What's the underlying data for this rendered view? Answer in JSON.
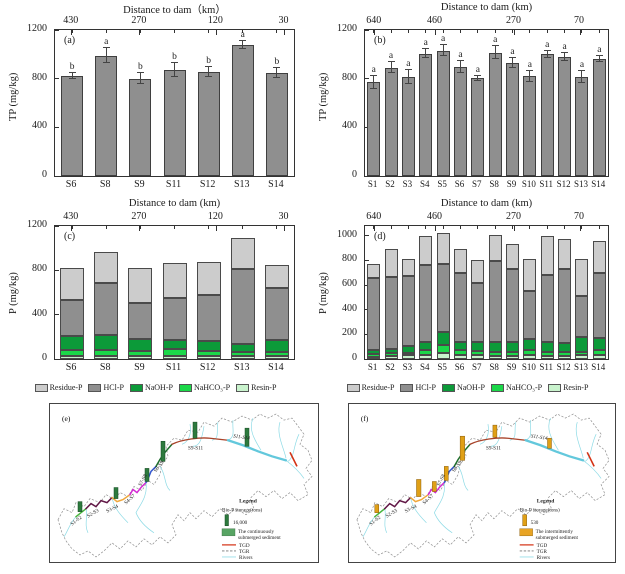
{
  "colors": {
    "bar_fill": "#8f8f8f",
    "bar_border": "#3f3f3f",
    "error": "#444444"
  },
  "chart_data": [
    {
      "id": "a",
      "type": "bar",
      "panel_label": "(a)",
      "ylabel": "TP (mg/kg)",
      "ymax": 1200,
      "frame_max": 1200,
      "yticks": [
        0,
        400,
        800,
        1200
      ],
      "top_axis": {
        "title": "Distance to dam（km）",
        "labels": [
          {
            "text": "430",
            "pos": 0.07
          },
          {
            "text": "270",
            "pos": 0.355
          },
          {
            "text": "120",
            "pos": 0.675
          },
          {
            "text": "30",
            "pos": 0.96
          }
        ]
      },
      "categories": [
        "S6",
        "S8",
        "S9",
        "S11",
        "S12",
        "S13",
        "S14"
      ],
      "values": [
        820,
        990,
        800,
        870,
        855,
        1075,
        845
      ],
      "errors": [
        25,
        65,
        45,
        55,
        40,
        35,
        40
      ],
      "letters": [
        "b",
        "a",
        "b",
        "b",
        "b",
        "a",
        "b"
      ]
    },
    {
      "id": "b",
      "type": "bar",
      "panel_label": "(b)",
      "ylabel": "TP (mg/kg)",
      "ymax": 1200,
      "frame_max": 1200,
      "yticks": [
        0,
        400,
        800,
        1200
      ],
      "top_axis": {
        "title": "Distance to dam (km)",
        "labels": [
          {
            "text": "640",
            "pos": 0.04
          },
          {
            "text": "460",
            "pos": 0.29
          },
          {
            "text": "270",
            "pos": 0.615
          },
          {
            "text": "70",
            "pos": 0.885
          }
        ]
      },
      "categories": [
        "S1",
        "S2",
        "S3",
        "S4",
        "S5",
        "S6",
        "S7",
        "S8",
        "S9",
        "S10",
        "S11",
        "S12",
        "S13",
        "S14"
      ],
      "values": [
        770,
        890,
        815,
        1005,
        1030,
        895,
        805,
        1015,
        930,
        820,
        1000,
        980,
        815,
        960
      ],
      "errors": [
        55,
        45,
        55,
        35,
        45,
        50,
        20,
        50,
        40,
        45,
        30,
        35,
        50,
        25
      ],
      "letters": [
        "a",
        "a",
        "a",
        "a",
        "a",
        "a",
        "a",
        "a",
        "a",
        "a",
        "a",
        "a",
        "a",
        "a"
      ]
    },
    {
      "id": "c",
      "type": "stacked_bar",
      "panel_label": "(c)",
      "ylabel": "P (mg/kg)",
      "ymax": 1200,
      "frame_max": 1200,
      "yticks": [
        0,
        400,
        800,
        1200
      ],
      "top_axis": {
        "title": "Distance to dam (km)",
        "labels": [
          {
            "text": "430",
            "pos": 0.07
          },
          {
            "text": "270",
            "pos": 0.355
          },
          {
            "text": "120",
            "pos": 0.675
          },
          {
            "text": "30",
            "pos": 0.96
          }
        ]
      },
      "categories": [
        "S6",
        "S8",
        "S9",
        "S11",
        "S12",
        "S13",
        "S14"
      ],
      "series": [
        {
          "name": "Resin-P",
          "color": "#c9f3cd",
          "values": [
            30,
            30,
            25,
            30,
            30,
            25,
            25
          ]
        },
        {
          "name": "NaHCO₃-P",
          "color": "#1bd849",
          "values": [
            55,
            55,
            45,
            60,
            40,
            35,
            40
          ]
        },
        {
          "name": "NaOH-P",
          "color": "#0c9a39",
          "values": [
            125,
            130,
            115,
            85,
            95,
            75,
            110
          ]
        },
        {
          "name": "HCl-P",
          "color": "#8f8f8f",
          "values": [
            320,
            470,
            320,
            380,
            410,
            680,
            470
          ]
        },
        {
          "name": "Residue-P",
          "color": "#cccccc",
          "values": [
            290,
            285,
            315,
            315,
            300,
            280,
            200
          ]
        }
      ],
      "legend": [
        {
          "label": "Residue-P",
          "color": "#cccccc"
        },
        {
          "label": "HCl-P",
          "color": "#8f8f8f"
        },
        {
          "label": "NaOH-P",
          "color": "#0c9a39"
        },
        {
          "label": "NaHCO₃-P",
          "color": "#1bd849"
        },
        {
          "label": "Resin-P",
          "color": "#c9f3cd"
        }
      ]
    },
    {
      "id": "d",
      "type": "stacked_bar",
      "panel_label": "(d)",
      "ylabel": "P (mg/kg)",
      "ymax": 1000,
      "frame_max": 1080,
      "yticks": [
        0,
        200,
        400,
        600,
        800,
        1000
      ],
      "top_axis": {
        "title": "Distance to dam (km)",
        "labels": [
          {
            "text": "640",
            "pos": 0.04
          },
          {
            "text": "460",
            "pos": 0.29
          },
          {
            "text": "270",
            "pos": 0.615
          },
          {
            "text": "70",
            "pos": 0.885
          }
        ]
      },
      "categories": [
        "S1",
        "S2",
        "S3",
        "S4",
        "S5",
        "S6",
        "S7",
        "S8",
        "S9",
        "S10",
        "S11",
        "S12",
        "S13",
        "S14"
      ],
      "series": [
        {
          "name": "Resin-P",
          "color": "#c9f3cd",
          "values": [
            20,
            25,
            30,
            30,
            45,
            30,
            30,
            25,
            25,
            30,
            25,
            25,
            30,
            30
          ]
        },
        {
          "name": "NaHCO₃-P",
          "color": "#1bd849",
          "values": [
            20,
            25,
            20,
            40,
            65,
            40,
            35,
            35,
            35,
            40,
            30,
            30,
            30,
            40
          ]
        },
        {
          "name": "NaOH-P",
          "color": "#0c9a39",
          "values": [
            30,
            35,
            55,
            70,
            110,
            70,
            75,
            80,
            80,
            90,
            80,
            75,
            120,
            100
          ]
        },
        {
          "name": "HCl-P",
          "color": "#8f8f8f",
          "values": [
            590,
            585,
            570,
            620,
            555,
            560,
            475,
            655,
            590,
            390,
            550,
            600,
            335,
            530
          ]
        },
        {
          "name": "Residue-P",
          "color": "#cccccc",
          "values": [
            110,
            220,
            140,
            240,
            250,
            190,
            190,
            215,
            200,
            265,
            315,
            245,
            295,
            260
          ]
        }
      ],
      "legend": [
        {
          "label": "Residue-P",
          "color": "#cccccc"
        },
        {
          "label": "HCl-P",
          "color": "#8f8f8f"
        },
        {
          "label": "NaOH-P",
          "color": "#0c9a39"
        },
        {
          "label": "NaHCO₃-P",
          "color": "#1bd849"
        },
        {
          "label": "Resin-P",
          "color": "#c9f3cd"
        }
      ]
    }
  ],
  "maps": {
    "river_segments": [
      {
        "label": "S1-S2",
        "color": "#46b43c"
      },
      {
        "label": "S2-S3",
        "color": "#611746"
      },
      {
        "label": "S3-S4",
        "color": "#f0a83c"
      },
      {
        "label": "S4-S7",
        "color": "#d42ad4"
      },
      {
        "label": "S7-S8",
        "color": "#3558cf"
      },
      {
        "label": "S8-S9",
        "color": "#1d6e2d"
      },
      {
        "label": "S9-S11",
        "color": "#a8432a"
      },
      {
        "label": "S11-S14",
        "color": "#63c8dc"
      }
    ],
    "river_color": "#8edbe6",
    "tgd_color": "#d43214",
    "e": {
      "panel_label": "(e)",
      "legend": {
        "title": "Legend",
        "storage_label": "Bio-P storage(tons)",
        "storage_value": "16,000",
        "sediment_line1": "The continuously",
        "sediment_line2": "submerged sediment",
        "tgd_label": "TGD",
        "tgr_label": "TGR",
        "rivers_label": "Rivers",
        "bar_color": "#2d7a3e",
        "sediment_color": "#57a463"
      }
    },
    "f": {
      "panel_label": "(f)",
      "legend": {
        "title": "Legend",
        "storage_label": "Bio-P storage(tons)",
        "storage_value": "530",
        "sediment_line1": "The intermittently",
        "sediment_line2": "submerged sediment",
        "tgd_label": "TGD",
        "tgr_label": "TGR",
        "rivers_label": "Rivers",
        "bar_color": "#e0a016",
        "sediment_color": "#e8a424"
      }
    }
  }
}
